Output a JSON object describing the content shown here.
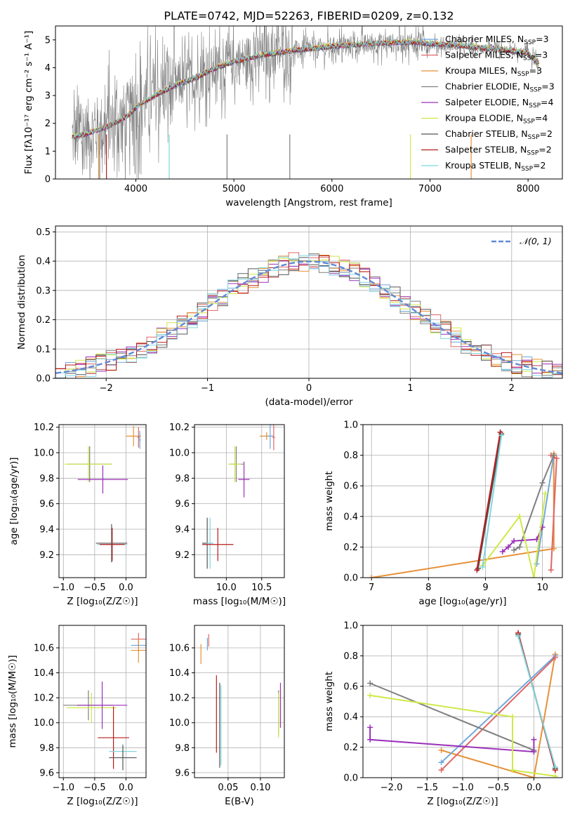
{
  "title": "PLATE=0742, MJD=52263, FIBERID=0209, z=0.132",
  "spectrum": {
    "xlabel": "wavelength [Angstrom, rest frame]",
    "ylabel": "Flux [fλ10⁻¹⁷ erg cm⁻² s⁻¹ A⁻¹]",
    "legend": [
      "Chabrier MILES, N_SSP=3",
      "Salpeter MILES, N_SSP=3",
      "Kroupa MILES, N_SSP=3",
      "Chabrier ELODIE, N_SSP=3",
      "Salpeter ELODIE, N_SSP=4",
      "Kroupa ELODIE, N_SSP=4",
      "Chabrier STELIB, N_SSP=2",
      "Salpeter STELIB, N_SSP=2",
      "Kroupa STELIB, N_SSP=2"
    ]
  },
  "residuals": {
    "xlabel": "(data-model)/error",
    "ylabel": "Normed distribution",
    "legend_label": "𝒩(0, 1)"
  },
  "panels": {
    "z_age": {
      "xlabel": "Z [log₁₀(Z/Z☉)]",
      "ylabel": "age  [log₁₀(age/yr)]"
    },
    "mass_age": {
      "xlabel": "mass [log₁₀(M/M☉)]"
    },
    "age_weight": {
      "xlabel": "age  [log₁₀(age/yr)]",
      "ylabel": "mass weight"
    },
    "z_mass": {
      "xlabel": "Z [log₁₀(Z/Z☉)]",
      "ylabel": "mass [log₁₀(M/M☉)]"
    },
    "ebv_mass": {
      "xlabel": "E(B-V)"
    },
    "z_weight": {
      "xlabel": "Z [log₁₀(Z/Z☉)]",
      "ylabel": "mass weight"
    }
  },
  "colors": {
    "chabrier_miles": "#6fa8dc",
    "salpeter_miles": "#e06666",
    "kroupa_miles": "#e69138",
    "chabrier_elodie": "#7f7f7f",
    "salpeter_elodie": "#9b30ba",
    "kroupa_elodie": "#cfe849",
    "chabrier_stelib": "#555555",
    "salpeter_stelib": "#b71c1c",
    "kroupa_stelib": "#7fd6de",
    "gaussian": "#6089d6"
  },
  "chart_data": [
    {
      "type": "line",
      "title": "PLATE=0742, MJD=52263, FIBERID=0209, z=0.132",
      "xlabel": "wavelength [Angstrom, rest frame]",
      "ylabel": "Flux [fλ10⁻¹⁷ erg cm⁻² s⁻¹ A⁻¹]",
      "xlim": [
        3180,
        8350
      ],
      "ylim": [
        0,
        5.5
      ],
      "xticks": [
        4000,
        5000,
        6000,
        7000,
        8000
      ],
      "yticks": [
        0,
        1,
        2,
        3,
        4,
        5
      ],
      "continuum": {
        "x": [
          3350,
          3500,
          3700,
          3900,
          4000,
          4200,
          4400,
          4600,
          4800,
          5000,
          5300,
          5600,
          6000,
          6400,
          6800,
          7200,
          7500,
          7800,
          8000,
          8100
        ],
        "y": [
          1.5,
          1.6,
          1.85,
          2.2,
          2.55,
          3.0,
          3.35,
          3.6,
          3.95,
          4.2,
          4.45,
          4.6,
          4.75,
          4.85,
          4.9,
          4.8,
          4.7,
          4.6,
          4.5,
          4.15
        ]
      }
    },
    {
      "type": "bar",
      "xlabel": "(data-model)/error",
      "ylabel": "Normed distribution",
      "xlim": [
        -2.5,
        2.5
      ],
      "ylim": [
        0,
        0.52
      ],
      "xticks": [
        -2,
        -1,
        0,
        1,
        2
      ],
      "yticks": [
        0.0,
        0.1,
        0.2,
        0.3,
        0.4,
        0.5
      ],
      "series": [
        {
          "name": "𝒩(0, 1)",
          "mu": 0,
          "sigma": 1
        }
      ]
    },
    {
      "type": "scatter",
      "xlabel": "Z [log₁₀(Z/Z☉)]",
      "ylabel": "age  [log₁₀(age/yr)]",
      "xlim": [
        -1.07,
        0.32
      ],
      "ylim": [
        9.02,
        10.22
      ],
      "xticks": [
        -1.0,
        -0.5,
        0.0
      ],
      "yticks": [
        9.2,
        9.4,
        9.6,
        9.8,
        10.0,
        10.2
      ],
      "points": [
        {
          "x": 0.12,
          "y": 10.13,
          "xerr": 0.12,
          "yerr": 0.08,
          "c": "kroupa_miles"
        },
        {
          "x": 0.2,
          "y": 10.12,
          "xerr": 0.02,
          "yerr": 0.08,
          "c": "salpeter_miles"
        },
        {
          "x": 0.22,
          "y": 10.1,
          "xerr": 0.02,
          "yerr": 0.07,
          "c": "chabrier_miles"
        },
        {
          "x": -0.58,
          "y": 9.91,
          "xerr": 0.35,
          "yerr": 0.14,
          "c": "chabrier_elodie"
        },
        {
          "x": -0.6,
          "y": 9.91,
          "xerr": 0.38,
          "yerr": 0.14,
          "c": "kroupa_elodie"
        },
        {
          "x": -0.37,
          "y": 9.79,
          "xerr": 0.4,
          "yerr": 0.11,
          "c": "salpeter_elodie"
        },
        {
          "x": -0.23,
          "y": 9.29,
          "xerr": 0.25,
          "yerr": 0.15,
          "c": "chabrier_stelib"
        },
        {
          "x": -0.22,
          "y": 9.28,
          "xerr": 0.24,
          "yerr": 0.13,
          "c": "kroupa_stelib"
        },
        {
          "x": -0.22,
          "y": 9.28,
          "xerr": 0.2,
          "yerr": 0.13,
          "c": "salpeter_stelib"
        }
      ]
    },
    {
      "type": "scatter",
      "xlabel": "mass [log₁₀(M/M☉)]",
      "xlim": [
        9.55,
        10.82
      ],
      "ylim": [
        9.02,
        10.22
      ],
      "xticks": [
        10.0,
        10.5
      ],
      "yticks": [
        9.2,
        9.4,
        9.6,
        9.8,
        10.0,
        10.2
      ],
      "points": [
        {
          "x": 10.57,
          "y": 10.13,
          "xerr": 0.1,
          "yerr": 0.03,
          "c": "kroupa_miles"
        },
        {
          "x": 10.62,
          "y": 10.13,
          "xerr": 0.05,
          "yerr": 0.1,
          "c": "chabrier_miles"
        },
        {
          "x": 10.67,
          "y": 10.12,
          "xerr": 0.02,
          "yerr": 0.1,
          "c": "salpeter_miles"
        },
        {
          "x": 10.14,
          "y": 9.91,
          "xerr": 0.1,
          "yerr": 0.14,
          "c": "chabrier_elodie"
        },
        {
          "x": 10.12,
          "y": 9.91,
          "xerr": 0.09,
          "yerr": 0.14,
          "c": "kroupa_elodie"
        },
        {
          "x": 10.25,
          "y": 9.79,
          "xerr": 0.08,
          "yerr": 0.14,
          "c": "salpeter_elodie"
        },
        {
          "x": 9.73,
          "y": 9.29,
          "xerr": 0.07,
          "yerr": 0.2,
          "c": "chabrier_stelib"
        },
        {
          "x": 9.77,
          "y": 9.29,
          "xerr": 0.05,
          "yerr": 0.2,
          "c": "kroupa_stelib"
        },
        {
          "x": 9.88,
          "y": 9.28,
          "xerr": 0.22,
          "yerr": 0.13,
          "c": "salpeter_stelib"
        }
      ]
    },
    {
      "type": "line",
      "xlabel": "age  [log₁₀(age/yr)]",
      "ylabel": "mass weight",
      "xlim": [
        6.85,
        10.35
      ],
      "ylim": [
        0,
        1
      ],
      "xticks": [
        7,
        8,
        9,
        10
      ],
      "yticks": [
        0.0,
        0.2,
        0.4,
        0.6,
        0.8,
        1.0
      ],
      "series": [
        {
          "c": "kroupa_miles",
          "x": [
            7.0,
            10.2,
            10.2
          ],
          "y": [
            0.0,
            0.19,
            0.81
          ]
        },
        {
          "c": "chabrier_miles",
          "x": [
            9.9,
            10.2,
            10.2
          ],
          "y": [
            0.09,
            0.8,
            0.8
          ]
        },
        {
          "c": "salpeter_miles",
          "x": [
            10.15,
            10.25,
            10.15
          ],
          "y": [
            0.05,
            0.78,
            0.8
          ]
        },
        {
          "c": "chabrier_elodie",
          "x": [
            9.5,
            9.6,
            10.0,
            10.2
          ],
          "y": [
            0.18,
            0.2,
            0.62,
            0.8
          ]
        },
        {
          "c": "salpeter_elodie",
          "x": [
            9.3,
            9.4,
            9.5,
            9.9,
            10.0
          ],
          "y": [
            0.17,
            0.2,
            0.24,
            0.25,
            0.33
          ]
        },
        {
          "c": "kroupa_elodie",
          "x": [
            8.95,
            9.6,
            9.85,
            10.05
          ],
          "y": [
            0.08,
            0.4,
            0.0,
            0.55
          ]
        },
        {
          "c": "chabrier_stelib",
          "x": [
            8.87,
            9.28
          ],
          "y": [
            0.06,
            0.94
          ]
        },
        {
          "c": "salpeter_stelib",
          "x": [
            8.85,
            9.26
          ],
          "y": [
            0.05,
            0.95
          ]
        },
        {
          "c": "kroupa_stelib",
          "x": [
            8.95,
            9.28
          ],
          "y": [
            0.07,
            0.93
          ]
        }
      ]
    },
    {
      "type": "scatter",
      "xlabel": "Z [log₁₀(Z/Z☉)]",
      "ylabel": "mass [log₁₀(M/M☉)]",
      "xlim": [
        -1.07,
        0.32
      ],
      "ylim": [
        9.56,
        10.78
      ],
      "xticks": [
        -1.0,
        -0.5,
        0.0
      ],
      "yticks": [
        9.6,
        9.8,
        10.0,
        10.2,
        10.4,
        10.6
      ],
      "points": [
        {
          "x": 0.2,
          "y": 10.67,
          "xerr": 0.12,
          "yerr": 0.05,
          "c": "salpeter_miles"
        },
        {
          "x": 0.2,
          "y": 10.62,
          "xerr": 0.12,
          "yerr": 0.05,
          "c": "chabrier_miles"
        },
        {
          "x": 0.2,
          "y": 10.58,
          "xerr": 0.12,
          "yerr": 0.1,
          "c": "kroupa_miles"
        },
        {
          "x": -0.6,
          "y": 10.14,
          "xerr": 0.4,
          "yerr": 0.12,
          "c": "chabrier_elodie"
        },
        {
          "x": -0.55,
          "y": 10.12,
          "xerr": 0.4,
          "yerr": 0.12,
          "c": "kroupa_elodie"
        },
        {
          "x": -0.38,
          "y": 10.14,
          "xerr": 0.4,
          "yerr": 0.19,
          "c": "salpeter_elodie"
        },
        {
          "x": -0.2,
          "y": 9.88,
          "xerr": 0.25,
          "yerr": 0.25,
          "c": "salpeter_stelib"
        },
        {
          "x": -0.05,
          "y": 9.77,
          "xerr": 0.22,
          "yerr": 0.06,
          "c": "kroupa_stelib"
        },
        {
          "x": -0.05,
          "y": 9.72,
          "xerr": 0.22,
          "yerr": 0.1,
          "c": "chabrier_stelib"
        }
      ]
    },
    {
      "type": "scatter",
      "xlabel": "E(B-V)",
      "xlim": [
        -0.002,
        0.137
      ],
      "ylim": [
        9.56,
        10.78
      ],
      "xticks": [
        0.05,
        0.1
      ],
      "yticks": [
        9.6,
        9.8,
        10.0,
        10.2,
        10.4,
        10.6
      ],
      "points": [
        {
          "x": 0.008,
          "y": 10.55,
          "xerr": 0,
          "yerr": 0.08,
          "c": "kroupa_miles"
        },
        {
          "x": 0.018,
          "y": 10.63,
          "xerr": 0,
          "yerr": 0.05,
          "c": "chabrier_miles"
        },
        {
          "x": 0.02,
          "y": 10.66,
          "xerr": 0,
          "yerr": 0.05,
          "c": "salpeter_miles"
        },
        {
          "x": 0.128,
          "y": 10.08,
          "xerr": 0,
          "yerr": 0.18,
          "c": "chabrier_elodie"
        },
        {
          "x": 0.128,
          "y": 10.06,
          "xerr": 0,
          "yerr": 0.18,
          "c": "kroupa_elodie"
        },
        {
          "x": 0.131,
          "y": 10.14,
          "xerr": 0,
          "yerr": 0.18,
          "c": "salpeter_elodie"
        },
        {
          "x": 0.032,
          "y": 10.07,
          "xerr": 0,
          "yerr": 0.31,
          "c": "salpeter_stelib"
        },
        {
          "x": 0.037,
          "y": 9.98,
          "xerr": 0,
          "yerr": 0.34,
          "c": "chabrier_stelib"
        },
        {
          "x": 0.039,
          "y": 9.98,
          "xerr": 0,
          "yerr": 0.32,
          "c": "kroupa_stelib"
        }
      ]
    },
    {
      "type": "line",
      "xlabel": "Z [log₁₀(Z/Z☉)]",
      "ylabel": "mass weight",
      "xlim": [
        -2.4,
        0.4
      ],
      "ylim": [
        0,
        1
      ],
      "xticks": [
        -2.0,
        -1.5,
        -1.0,
        -0.5,
        0.0
      ],
      "yticks": [
        0.0,
        0.2,
        0.4,
        0.6,
        0.8,
        1.0
      ],
      "series": [
        {
          "c": "kroupa_miles",
          "x": [
            -1.3,
            0.0,
            0.3
          ],
          "y": [
            0.18,
            0.0,
            0.81
          ]
        },
        {
          "c": "chabrier_miles",
          "x": [
            -1.3,
            0.3
          ],
          "y": [
            0.1,
            0.8
          ]
        },
        {
          "c": "salpeter_miles",
          "x": [
            -1.3,
            0.3
          ],
          "y": [
            0.05,
            0.79
          ]
        },
        {
          "c": "chabrier_elodie",
          "x": [
            -2.3,
            0.0
          ],
          "y": [
            0.62,
            0.18
          ]
        },
        {
          "c": "salpeter_elodie",
          "x": [
            -2.3,
            -2.3,
            0.0,
            0.0
          ],
          "y": [
            0.33,
            0.25,
            0.17,
            0.25
          ]
        },
        {
          "c": "kroupa_elodie",
          "x": [
            -2.3,
            -0.3,
            -0.3,
            0.3
          ],
          "y": [
            0.54,
            0.4,
            0.05,
            0.01
          ]
        },
        {
          "c": "chabrier_stelib",
          "x": [
            -0.22,
            0.3
          ],
          "y": [
            0.94,
            0.06
          ]
        },
        {
          "c": "salpeter_stelib",
          "x": [
            -0.22,
            0.3
          ],
          "y": [
            0.95,
            0.05
          ]
        },
        {
          "c": "kroupa_stelib",
          "x": [
            -0.22,
            0.3
          ],
          "y": [
            0.93,
            0.07
          ]
        }
      ]
    }
  ]
}
